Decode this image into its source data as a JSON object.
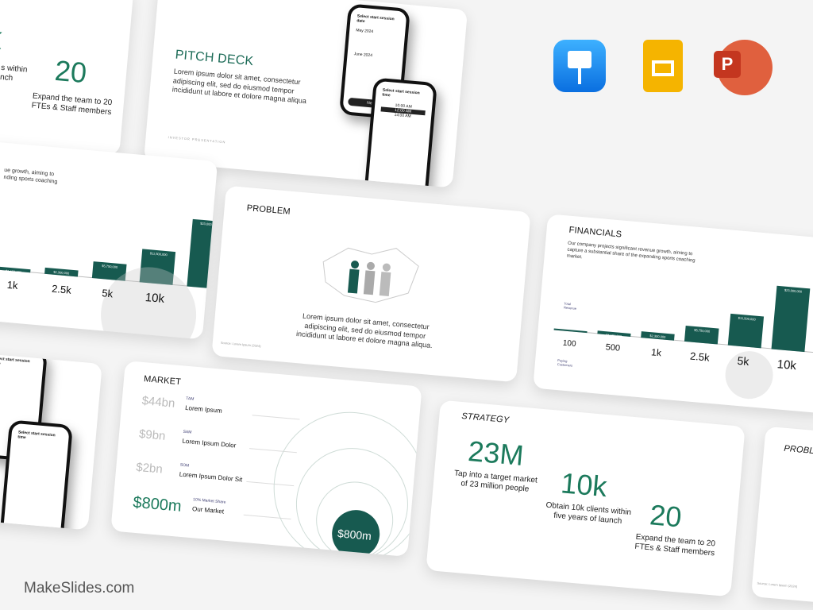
{
  "brand": "MakeSlides.com",
  "apps": [
    {
      "name": "keynote-icon",
      "color": "#1a8cf0"
    },
    {
      "name": "google-slides-icon",
      "color": "#f5b400"
    },
    {
      "name": "powerpoint-icon",
      "color": "#d0442a"
    }
  ],
  "accent": "#175a50",
  "strategy": {
    "title": "STRATEGY",
    "stats": [
      {
        "value": "23M",
        "caption": "Tap into a target market of 23 million people"
      },
      {
        "value": "10k",
        "caption": "Obtain 10k clients within five years of launch"
      },
      {
        "value": "20",
        "caption": "Expand the team to 20 FTEs & Staff members"
      }
    ],
    "partial_caption": "s within\nnch",
    "partial_value": "k"
  },
  "pitch": {
    "title": "PITCH DECK",
    "body": "Lorem ipsum dolor sit amet, consectetur adipiscing elit, sed do eiusmod tempor incididunt ut labore et dolore magna aliqua",
    "footer": "INVESTOR PRESENTATION",
    "phone1": {
      "title": "Select start session date",
      "month1": "May 2024",
      "month2": "June 2024",
      "button": "Next"
    },
    "phone2": {
      "title": "Select start session time",
      "slots": [
        "10:00 AM",
        "12:00 AM",
        "14:00 AM"
      ]
    }
  },
  "financials": {
    "title": "FINANCIALS",
    "body": "Our company projects significant revenue growth, aiming to capture a substantial share of the expanding sports coaching market.",
    "revenue_label": "Total Revenue",
    "customers_label": "Paying Customers",
    "customers": [
      "100",
      "500",
      "1k",
      "2.5k",
      "5k",
      "10k"
    ],
    "revenue": [
      "$230,000",
      "$1,150,000",
      "$2,300,000",
      "$5,750,000",
      "$11,500,000",
      "$23,000,000"
    ],
    "revenue_values": [
      230000,
      1150000,
      2300000,
      5750000,
      11500000,
      23000000
    ]
  },
  "financials_left": {
    "body": "ue growth, aiming to\nnding sports coaching"
  },
  "problem": {
    "title": "PROBLEM",
    "body": "Lorem ipsum dolor sit amet, consectetur adipiscing elit, sed do eiusmod tempor incididunt ut labore et dolore magna aliqua.",
    "source": "Source: Lorem Ipsum (2024)"
  },
  "market": {
    "title": "MARKET",
    "rows": [
      {
        "value": "$44bn",
        "tag": "TAM",
        "label": "Lorem Ipsum"
      },
      {
        "value": "$9bn",
        "tag": "SAM",
        "label": "Lorem Ipsum Dolor"
      },
      {
        "value": "$2bn",
        "tag": "SOM",
        "label": "Lorem Ipsum Dolor Sit"
      },
      {
        "value": "$800m",
        "tag": "10% Market Share",
        "label": "Our Market"
      }
    ],
    "circle_label": "$800m"
  }
}
